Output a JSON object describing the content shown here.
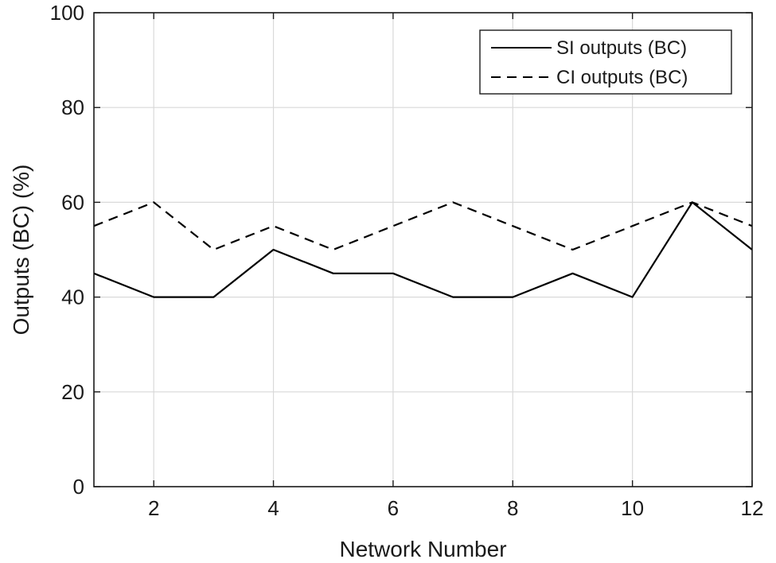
{
  "chart_data": {
    "type": "line",
    "xlabel": "Network Number",
    "ylabel": "Outputs (BC) (%)",
    "xlim": [
      1,
      12
    ],
    "ylim": [
      0,
      100
    ],
    "xticks": [
      2,
      4,
      6,
      8,
      10,
      12
    ],
    "yticks": [
      0,
      20,
      40,
      60,
      80,
      100
    ],
    "grid": true,
    "legend_position": "top-right",
    "x": [
      1,
      2,
      3,
      4,
      5,
      6,
      7,
      8,
      9,
      10,
      11,
      12
    ],
    "series": [
      {
        "name": "SI outputs (BC)",
        "style": "solid",
        "color": "#000000",
        "values": [
          45,
          40,
          40,
          50,
          45,
          45,
          40,
          40,
          45,
          40,
          60,
          50
        ]
      },
      {
        "name": "CI outputs (BC)",
        "style": "dashed",
        "color": "#000000",
        "values": [
          55,
          60,
          50,
          55,
          50,
          55,
          60,
          55,
          50,
          55,
          60,
          55
        ]
      }
    ]
  }
}
